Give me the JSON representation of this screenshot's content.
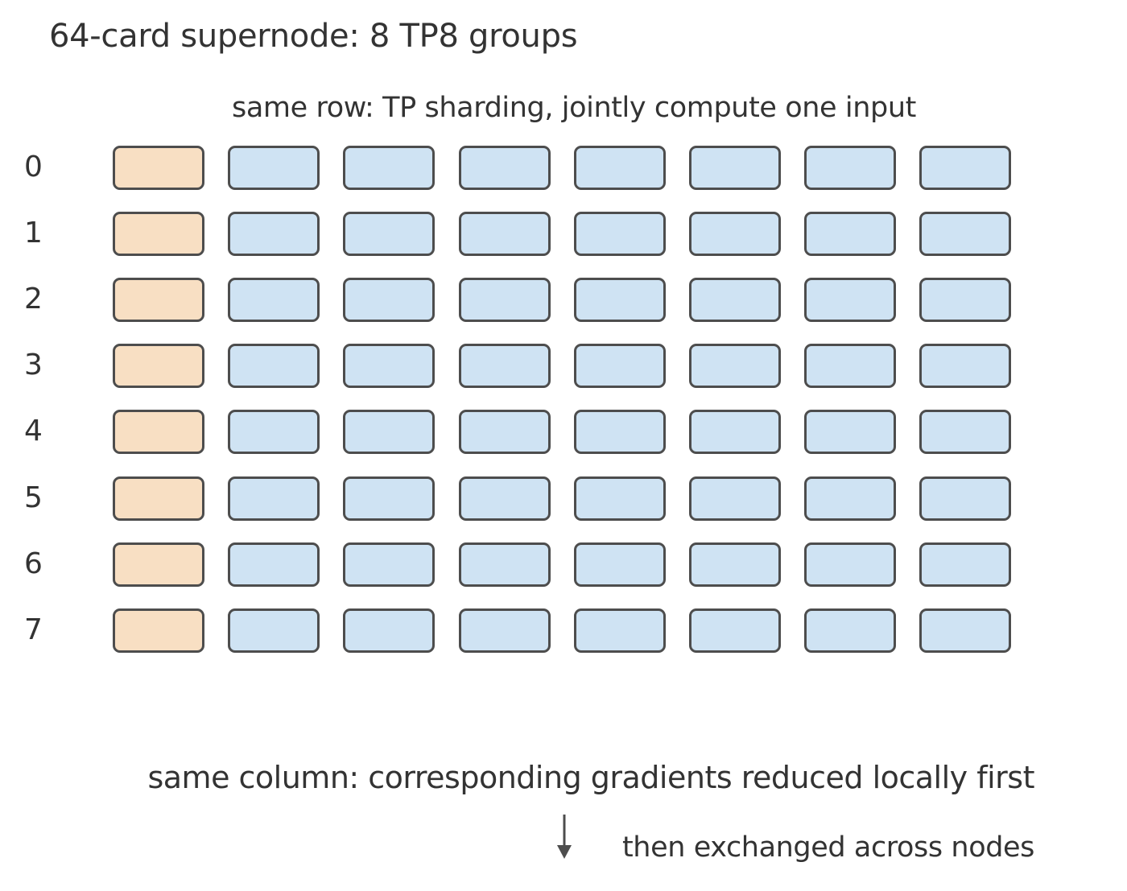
{
  "title": "64-card supernode: 8 TP8 groups",
  "captions": {
    "row": "same row: TP sharding, jointly compute one input",
    "column": "same column: corresponding gradients reduced locally first",
    "next": "then exchanged across nodes"
  },
  "grid": {
    "row_labels": [
      "0",
      "1",
      "2",
      "3",
      "4",
      "5",
      "6",
      "7"
    ],
    "columns": 8,
    "highlighted_column": 0
  },
  "colors": {
    "highlight_fill": "#f8dfc3",
    "card_fill": "#cfe3f3",
    "card_border": "#4d4d4d",
    "text": "#333333"
  },
  "icons": {
    "down-arrow": "down-arrow-icon"
  }
}
